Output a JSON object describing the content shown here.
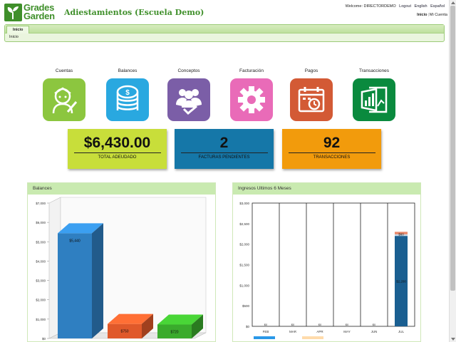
{
  "header": {
    "logo_line1": "Grades",
    "logo_line2": "Garden",
    "school_title": "Adiestamientos (Escuela Demo)",
    "welcome": "Welcome: DIRECTORDEMO",
    "logout": "Logout",
    "english": "English",
    "espanol": "Español",
    "inicio": "Inicio",
    "mi_cuenta": "Mi Cuenta"
  },
  "nav": {
    "tab": "Inicio",
    "sub": "Inicio"
  },
  "tiles": [
    {
      "label": "Cuentas",
      "color": "#8cc63f",
      "icon": "student-icon"
    },
    {
      "label": "Balances",
      "color": "#29a8e0",
      "icon": "coins-icon"
    },
    {
      "label": "Conceptos",
      "color": "#7b5ea7",
      "icon": "group-check-icon"
    },
    {
      "label": "Facturación",
      "color": "#e96bb8",
      "icon": "gear-icon"
    },
    {
      "label": "Pagos",
      "color": "#d35a35",
      "icon": "calendar-clock-icon"
    },
    {
      "label": "Transacciones",
      "color": "#0a8a3e",
      "icon": "chart-doc-icon"
    }
  ],
  "stats": [
    {
      "value": "$6,430.00",
      "label": "TOTAL ADEUDADO",
      "color": "#c8de3a"
    },
    {
      "value": "2",
      "label": "FACTURAS PENDIENTES",
      "color": "#1577a8"
    },
    {
      "value": "92",
      "label": "TRANSACCIONES",
      "color": "#f29b0c"
    }
  ],
  "balances_panel": {
    "title": "Balances"
  },
  "ingresos_panel": {
    "title": "Ingresos Ultimos 6 Meses"
  },
  "chart_data": [
    {
      "type": "bar",
      "title": "Balances",
      "ylim": [
        0,
        7000
      ],
      "yticks": [
        "$0",
        "$1,000",
        "$2,000",
        "$3,000",
        "$4,000",
        "$5,000",
        "$6,000",
        "$7,000"
      ],
      "values": [
        5440,
        750,
        720
      ],
      "data_labels": [
        "$5,440",
        "$750",
        "$720"
      ],
      "colors": [
        "#2f7fc1",
        "#e0592a",
        "#3aab2c"
      ]
    },
    {
      "type": "bar",
      "title": "Ingresos Ultimos 6 Meses",
      "categories": [
        "FEB",
        "MAR",
        "APR",
        "MAY",
        "JUN",
        "JUL"
      ],
      "ylim": [
        0,
        3000
      ],
      "yticks": [
        "$0",
        "$500",
        "$1,000",
        "$1,500",
        "$2,000",
        "$2,500",
        "$3,000"
      ],
      "series": [
        {
          "values": [
            0,
            0,
            0,
            0,
            0,
            2200
          ],
          "color": "#1a5f91"
        },
        {
          "values": [
            0,
            0,
            0,
            0,
            0,
            40
          ],
          "color": "#c8d8e8"
        },
        {
          "values": [
            0,
            0,
            0,
            0,
            0,
            60
          ],
          "color": "#e9896b"
        }
      ],
      "data_labels": [
        "$0",
        "$0",
        "$0",
        "$0",
        "$0",
        "$2,200"
      ],
      "top_label": "$60"
    }
  ]
}
